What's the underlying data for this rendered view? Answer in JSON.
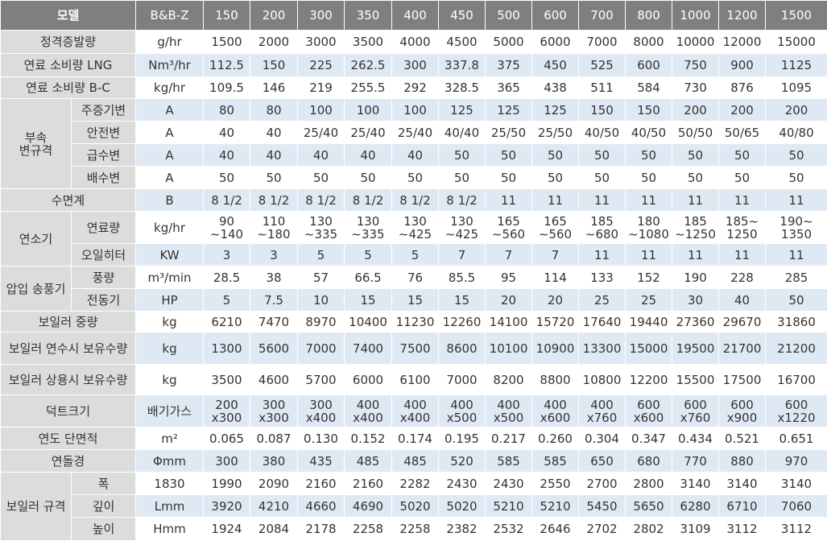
{
  "table": {
    "header": [
      "모델",
      "B&B-Z",
      "150",
      "200",
      "300",
      "350",
      "400",
      "450",
      "500",
      "600",
      "700",
      "800",
      "1000",
      "1200",
      "1500"
    ],
    "sections": [
      {
        "label": "정격증발량",
        "unit": "g/hr",
        "values": [
          "1500",
          "2000",
          "3000",
          "3500",
          "4000",
          "4500",
          "5000",
          "6000",
          "7000",
          "8000",
          "10000",
          "12000",
          "15000"
        ]
      },
      {
        "label": "연료 소비량 LNG",
        "unit": "Nm³/hr",
        "values": [
          "112.5",
          "150",
          "225",
          "262.5",
          "300",
          "337.8",
          "375",
          "450",
          "525",
          "600",
          "750",
          "900",
          "1125"
        ]
      },
      {
        "label": "연료 소비량 B-C",
        "unit": "kg/hr",
        "values": [
          "109.5",
          "146",
          "219",
          "255.5",
          "292",
          "328.5",
          "365",
          "438",
          "511",
          "584",
          "730",
          "876",
          "1095"
        ]
      },
      {
        "group": "부속\n변규격",
        "rows": [
          {
            "label": "주증기변",
            "unit": "A",
            "values": [
              "80",
              "80",
              "100",
              "100",
              "100",
              "125",
              "125",
              "125",
              "150",
              "150",
              "200",
              "200",
              "200"
            ]
          },
          {
            "label": "안전변",
            "unit": "A",
            "values": [
              "40",
              "40",
              "25/40",
              "25/40",
              "25/40",
              "40/40",
              "25/50",
              "25/50",
              "40/50",
              "40/50",
              "50/50",
              "50/65",
              "40/80"
            ]
          },
          {
            "label": "급수변",
            "unit": "A",
            "values": [
              "40",
              "40",
              "40",
              "40",
              "40",
              "50",
              "50",
              "50",
              "50",
              "50",
              "50",
              "50",
              "50"
            ]
          },
          {
            "label": "배수변",
            "unit": "A",
            "values": [
              "50",
              "50",
              "50",
              "50",
              "50",
              "50",
              "50",
              "50",
              "50",
              "50",
              "50",
              "50",
              "50"
            ]
          }
        ]
      },
      {
        "label": "수면계",
        "unit": "B",
        "values": [
          "8 1/2",
          "8 1/2",
          "8 1/2",
          "8 1/2",
          "8 1/2",
          "8 1/2",
          "11",
          "11",
          "11",
          "11",
          "11",
          "11",
          "11"
        ]
      },
      {
        "group": "연소기",
        "rows": [
          {
            "label": "연료량",
            "unit": "kg/hr",
            "values": [
              "90\n~140",
              "110\n~180",
              "130\n~335",
              "130\n~335",
              "130\n~425",
              "130\n~425",
              "165\n~560",
              "165\n~560",
              "185\n~680",
              "180\n~1080",
              "185\n~1250",
              "185~\n1250",
              "190~\n1350"
            ]
          },
          {
            "label": "오일히터",
            "unit": "KW",
            "values": [
              "3",
              "3",
              "5",
              "5",
              "5",
              "7",
              "7",
              "7",
              "11",
              "11",
              "11",
              "11",
              "11"
            ]
          }
        ]
      },
      {
        "group": "압입 송풍기",
        "rows": [
          {
            "label": "풍량",
            "unit": "m³/min",
            "values": [
              "28.5",
              "38",
              "57",
              "66.5",
              "76",
              "85.5",
              "95",
              "114",
              "133",
              "152",
              "190",
              "228",
              "285"
            ]
          },
          {
            "label": "전동기",
            "unit": "HP",
            "values": [
              "5",
              "7.5",
              "10",
              "15",
              "15",
              "15",
              "20",
              "20",
              "25",
              "25",
              "30",
              "40",
              "50"
            ]
          }
        ]
      },
      {
        "label": "보일러 중량",
        "unit": "kg",
        "values": [
          "6210",
          "7470",
          "8970",
          "10400",
          "11230",
          "12260",
          "14100",
          "15720",
          "17640",
          "19440",
          "27360",
          "29670",
          "31860"
        ]
      },
      {
        "label": "보일러 연수시 보유수량",
        "unit": "kg",
        "values": [
          "1300",
          "5600",
          "7000",
          "7400",
          "7500",
          "8600",
          "10100",
          "10900",
          "13300",
          "15000",
          "19500",
          "21700",
          "21200"
        ]
      },
      {
        "label": "보일러 상용시 보유수량",
        "unit": "kg",
        "values": [
          "3500",
          "4600",
          "5700",
          "6000",
          "6100",
          "7000",
          "8200",
          "8800",
          "10800",
          "12200",
          "15500",
          "17500",
          "16700"
        ]
      },
      {
        "label": "덕트크기",
        "unit": "배기가스",
        "values": [
          "200\nx300",
          "300\nx300",
          "300\nx400",
          "400\nx400",
          "400\nx400",
          "400\nx500",
          "400\nx500",
          "400\nx600",
          "400\nx760",
          "600\nx600",
          "600\nx760",
          "600\nx900",
          "600\nx1220"
        ]
      },
      {
        "label": "연도 단면적",
        "unit": "m²",
        "values": [
          "0.065",
          "0.087",
          "0.130",
          "0.152",
          "0.174",
          "0.195",
          "0.217",
          "0.260",
          "0.304",
          "0.347",
          "0.434",
          "0.521",
          "0.651"
        ]
      },
      {
        "label": "연돌경",
        "unit": "Φmm",
        "values": [
          "300",
          "380",
          "435",
          "485",
          "485",
          "520",
          "585",
          "585",
          "650",
          "680",
          "770",
          "880",
          "970"
        ]
      },
      {
        "group": "보일러 규격",
        "rows": [
          {
            "label": "폭",
            "unit": "1830",
            "values": [
              "1990",
              "2090",
              "2160",
              "2160",
              "2282",
              "2430",
              "2430",
              "2550",
              "2700",
              "2800",
              "3140",
              "3140",
              "3140"
            ]
          },
          {
            "label": "깊이",
            "unit": "Lmm",
            "values": [
              "3920",
              "4210",
              "4660",
              "4690",
              "5020",
              "5020",
              "5210",
              "5210",
              "5450",
              "5650",
              "6280",
              "6710",
              "7060"
            ]
          },
          {
            "label": "높이",
            "unit": "Hmm",
            "values": [
              "1924",
              "2084",
              "2178",
              "2258",
              "2258",
              "2382",
              "2532",
              "2646",
              "2702",
              "2802",
              "3109",
              "3112",
              "3112"
            ]
          }
        ]
      }
    ]
  }
}
